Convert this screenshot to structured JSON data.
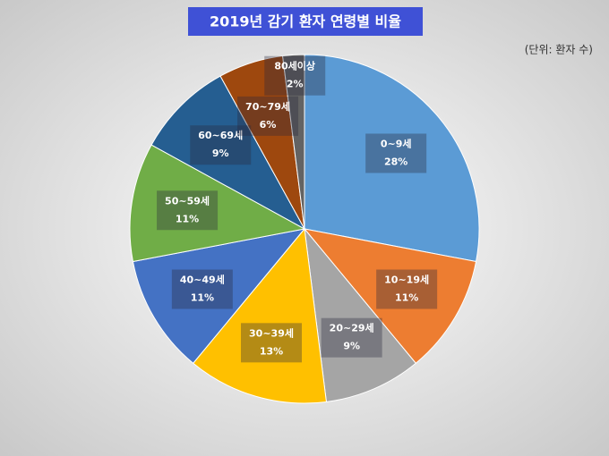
{
  "chart_data": {
    "type": "pie",
    "title": "2019년 감기 환자 연령별 비율",
    "subtitle": "(단위: 환자 수)",
    "categories": [
      "0~9세",
      "10~19세",
      "20~29세",
      "30~39세",
      "40~49세",
      "50~59세",
      "60~69세",
      "70~79세",
      "80세이상"
    ],
    "values": [
      28,
      11,
      9,
      13,
      11,
      11,
      9,
      6,
      2
    ],
    "value_labels": [
      "28%",
      "11%",
      "9%",
      "13%",
      "11%",
      "11%",
      "9%",
      "6%",
      "2%"
    ],
    "colors": [
      "#5b9bd5",
      "#ed7d31",
      "#a5a5a5",
      "#ffc000",
      "#4472c4",
      "#70ad47",
      "#255e91",
      "#9e480e",
      "#636363"
    ]
  }
}
